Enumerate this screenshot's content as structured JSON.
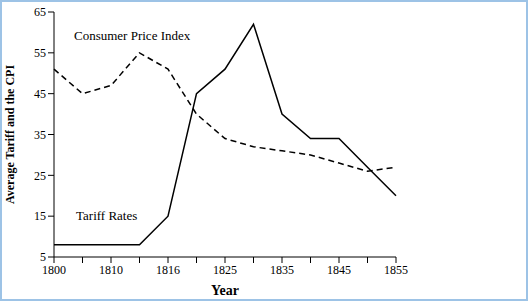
{
  "chart_data": {
    "type": "line",
    "x_label": "Year",
    "y_label": "Average Tariff and the CPI",
    "categories": [
      "1800",
      null,
      "1810",
      null,
      "1816",
      null,
      "1825",
      null,
      "1835",
      null,
      "1845",
      null,
      "1855"
    ],
    "series": [
      {
        "name": "Consumer Price Index",
        "color": "#000000",
        "line_style": "dashed",
        "values": [
          51,
          45,
          47,
          55,
          51,
          40,
          34,
          32,
          31,
          30,
          28,
          26,
          27
        ]
      },
      {
        "name": "Tariff Rates",
        "color": "#000000",
        "line_style": "solid",
        "values": [
          8,
          8,
          8,
          8,
          15,
          45,
          51,
          62,
          40,
          34,
          34,
          27,
          20
        ]
      }
    ],
    "ylim": [
      5,
      65
    ],
    "yticks": [
      5,
      15,
      25,
      35,
      45,
      55,
      65
    ],
    "grid": false
  }
}
